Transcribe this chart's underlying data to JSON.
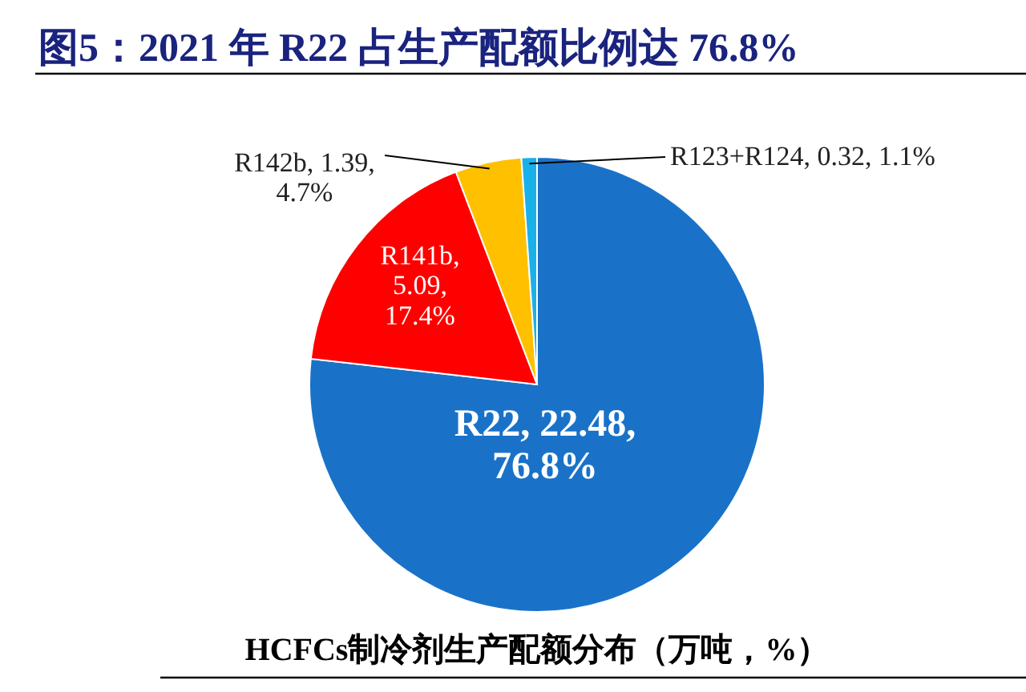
{
  "chart_data": {
    "type": "pie",
    "title": "图5：2021 年 R22 占生产配额比例达 76.8%",
    "categories": [
      "R22, 22.48, 76.8%",
      "R141b, 5.09, 17.4%",
      "R142b, 1.39, 4.7%",
      "R123+R124, 0.32, 1.1%"
    ],
    "values": [
      76.8,
      17.4,
      4.7,
      1.1
    ],
    "colors": [
      "#1a72c8",
      "#ff0000",
      "#ffc000",
      "#1ab0ea"
    ],
    "annotations": [
      "HCFCs制冷剂生产配额分布（万吨，%）"
    ],
    "legend": false
  }
}
